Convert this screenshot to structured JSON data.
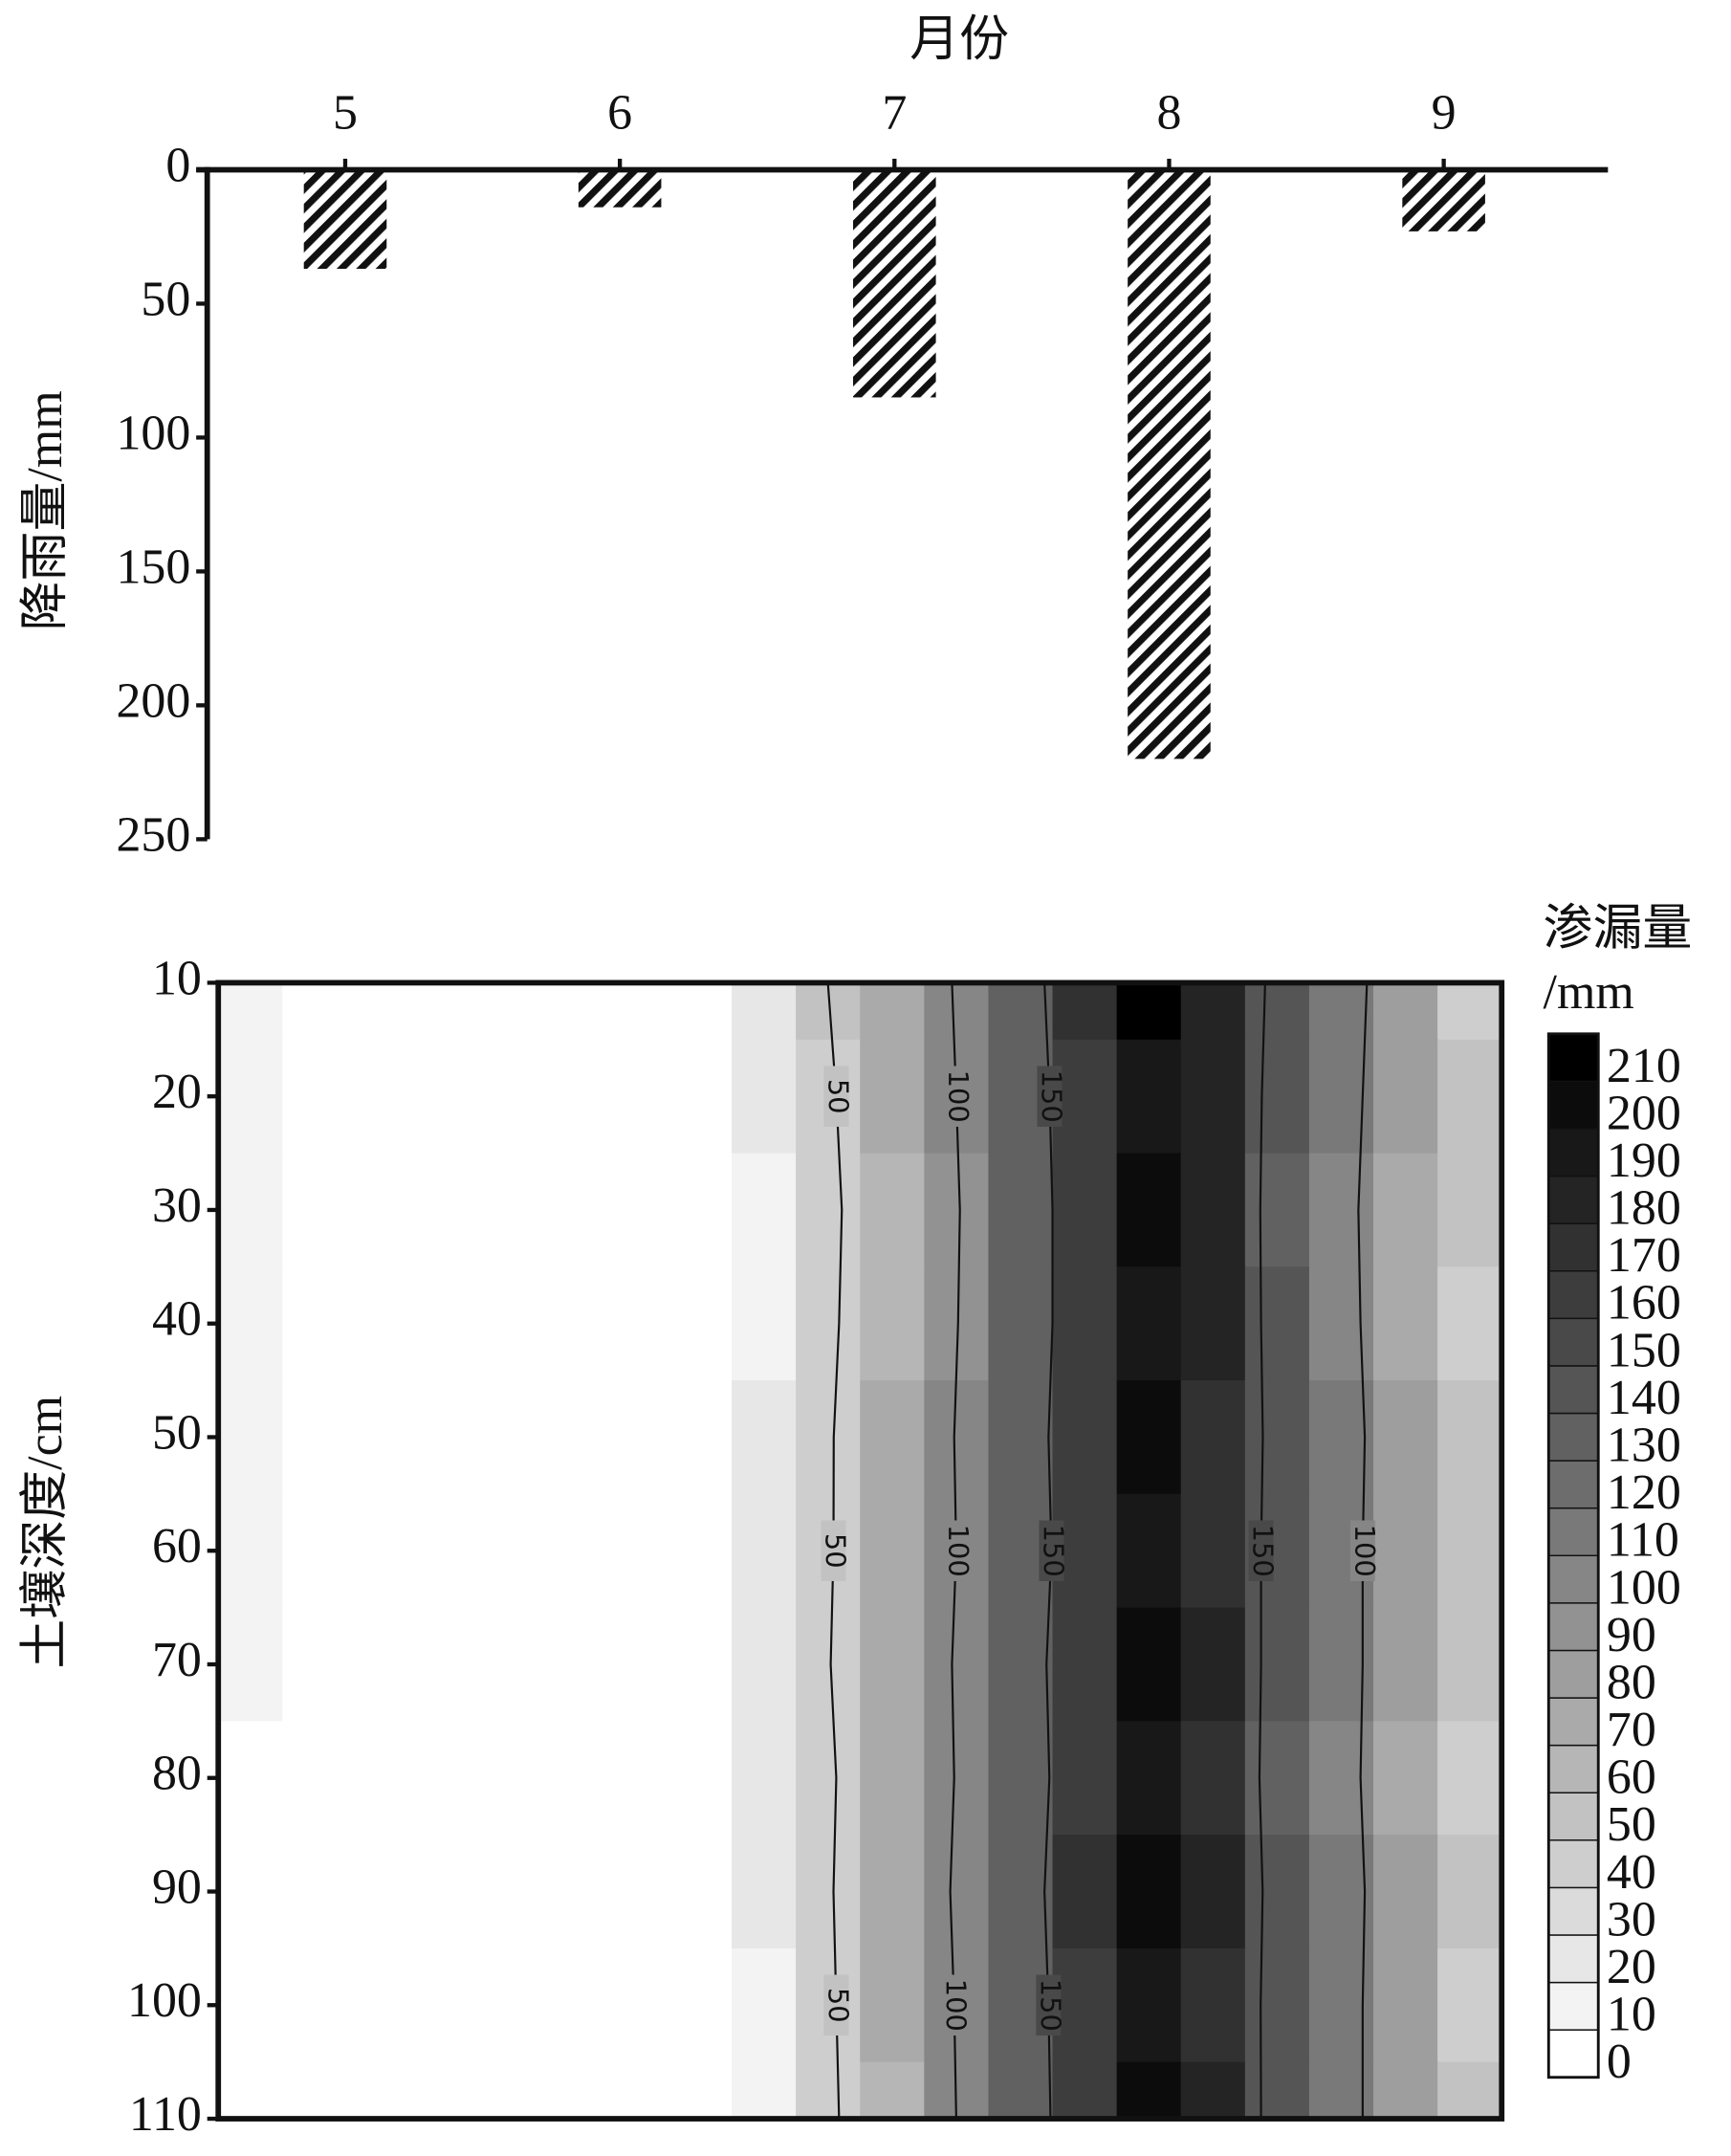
{
  "chart_data": [
    {
      "type": "bar",
      "x_label": "月份",
      "y_label": "降雨量/mm",
      "categories": [
        "5",
        "6",
        "7",
        "8",
        "9"
      ],
      "values": [
        37,
        14,
        85,
        220,
        23
      ],
      "ylim": [
        0,
        250
      ],
      "yticks": [
        0,
        50,
        100,
        150,
        200,
        250
      ],
      "y_inverted": true,
      "x_axis_position": "top",
      "color": "#111111"
    },
    {
      "type": "contour",
      "y_label": "土壤深度/cm",
      "colorbar_label": [
        "渗漏量",
        "/mm"
      ],
      "y": [
        10,
        20,
        30,
        40,
        50,
        60,
        70,
        80,
        90,
        100,
        110
      ],
      "ylim": [
        10,
        110
      ],
      "yticks": [
        10,
        20,
        30,
        40,
        50,
        60,
        70,
        80,
        90,
        100,
        110
      ],
      "y_inverted": true,
      "z": [
        [
          15,
          8,
          3,
          1,
          1,
          1,
          2,
          6,
          22,
          50,
          72,
          102,
          138,
          170,
          210,
          185,
          142,
          112,
          82,
          45
        ],
        [
          15,
          8,
          3,
          1,
          1,
          1,
          2,
          5,
          20,
          47,
          70,
          100,
          135,
          168,
          195,
          182,
          140,
          110,
          80,
          50
        ],
        [
          15,
          8,
          4,
          2,
          1,
          1,
          2,
          4,
          18,
          45,
          68,
          98,
          133,
          167,
          200,
          181,
          139,
          108,
          78,
          55
        ],
        [
          16,
          8,
          4,
          2,
          1,
          1,
          2,
          4,
          19,
          46,
          69,
          99,
          134,
          166,
          190,
          180,
          140,
          109,
          79,
          48
        ],
        [
          15,
          8,
          4,
          2,
          1,
          1,
          2,
          4,
          20,
          48,
          70,
          101,
          136,
          168,
          200,
          178,
          142,
          111,
          81,
          50
        ],
        [
          14,
          8,
          4,
          2,
          1,
          1,
          2,
          5,
          20,
          48,
          71,
          100,
          135,
          166,
          190,
          177,
          141,
          110,
          80,
          52
        ],
        [
          10,
          7,
          4,
          2,
          1,
          1,
          2,
          5,
          21,
          49,
          72,
          102,
          137,
          169,
          200,
          180,
          140,
          110,
          80,
          50
        ],
        [
          8,
          6,
          3,
          2,
          1,
          1,
          2,
          5,
          20,
          47,
          70,
          101,
          136,
          167,
          190,
          179,
          139,
          109,
          79,
          48
        ],
        [
          9,
          6,
          3,
          2,
          1,
          1,
          2,
          4,
          20,
          48,
          71,
          103,
          138,
          170,
          200,
          181,
          141,
          111,
          81,
          50
        ],
        [
          8,
          6,
          3,
          2,
          1,
          1,
          2,
          4,
          19,
          47,
          70,
          101,
          136,
          168,
          190,
          179,
          140,
          110,
          80,
          49
        ],
        [
          8,
          6,
          3,
          2,
          1,
          1,
          2,
          4,
          19,
          46,
          69,
          100,
          135,
          167,
          200,
          180,
          140,
          110,
          80,
          50
        ]
      ],
      "zlim": [
        0,
        220
      ],
      "zticks": [
        0,
        10,
        20,
        30,
        40,
        50,
        60,
        70,
        80,
        90,
        100,
        110,
        120,
        130,
        140,
        150,
        160,
        170,
        180,
        190,
        200,
        210
      ],
      "contour_levels": [
        50,
        100,
        150
      ]
    }
  ]
}
